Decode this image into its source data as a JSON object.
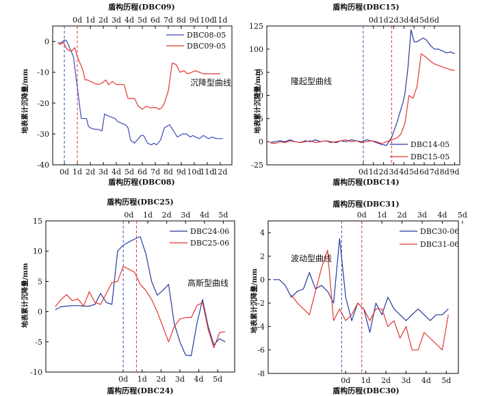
{
  "chart_data": [
    {
      "type": "line",
      "xlabel": "盾构历程(DBC08)",
      "x2label": "盾构历程(DBC09)",
      "ylabel": "地表累计沉降量/mm",
      "ylim": [
        -40,
        5
      ],
      "yticks": [
        0,
        -10,
        -20,
        -30,
        -40
      ],
      "xlim": [
        -0.9,
        12.9
      ],
      "xticks": [
        "0d",
        "1d",
        "2d",
        "3d",
        "4d",
        "5d",
        "6d",
        "7d",
        "8d",
        "9d",
        "10d",
        "11d",
        "12d"
      ],
      "x2lim": [
        -1.9,
        11.9
      ],
      "x2ticks": [
        "0d",
        "1d",
        "2d",
        "3d",
        "4d",
        "5d",
        "6d",
        "7d",
        "8d",
        "9d",
        "10d",
        "11d"
      ],
      "legend_position": "top-right",
      "annotation": "沉降型曲线",
      "vlines": [
        {
          "x": 0,
          "color": "#3a49b8"
        },
        {
          "x": 1,
          "color": "#e2342f"
        }
      ],
      "series": [
        {
          "name": "DBC08-05",
          "color": "#3a49b8",
          "x": [
            -0.5,
            -0.3,
            -0.1,
            0,
            0.15,
            0.3,
            0.5,
            0.7,
            0.85,
            1,
            1.15,
            1.3,
            1.5,
            1.7,
            1.85,
            2,
            2.3,
            2.6,
            2.9,
            3.1,
            3.3,
            3.6,
            3.9,
            4.1,
            4.4,
            4.7,
            4.9,
            5.1,
            5.4,
            5.7,
            5.9,
            6.1,
            6.4,
            6.7,
            6.9,
            7.1,
            7.4,
            7.7,
            7.9,
            8.1,
            8.4,
            8.7,
            8.9,
            9.1,
            9.4,
            9.7,
            9.9,
            10.1,
            10.4,
            10.7,
            10.9,
            11.1,
            11.4,
            11.7,
            11.9,
            12.2
          ],
          "y": [
            -0.5,
            -0.5,
            0,
            0.5,
            0.3,
            -1,
            -3,
            -5,
            -10,
            -15,
            -20,
            -25,
            -25,
            -25,
            -27.5,
            -28,
            -28.5,
            -28.5,
            -29,
            -23.5,
            -24,
            -24.5,
            -25,
            -26,
            -26.5,
            -27,
            -28,
            -32,
            -33,
            -31.5,
            -30.5,
            -30.5,
            -33,
            -33.5,
            -33,
            -33.5,
            -32,
            -28,
            -27.5,
            -27,
            -29,
            -31,
            -30.5,
            -30,
            -30,
            -31,
            -30.5,
            -31,
            -31.5,
            -30.5,
            -31,
            -31.5,
            -31,
            -31.5,
            -31.5,
            -31.5
          ]
        },
        {
          "name": "DBC09-05",
          "color": "#e2342f",
          "x": [
            -0.5,
            -0.3,
            -0.1,
            0,
            0.2,
            0.4,
            0.6,
            0.8,
            1,
            1.2,
            1.4,
            1.6,
            1.8,
            2,
            2.3,
            2.6,
            2.9,
            3.2,
            3.4,
            3.7,
            4,
            4.3,
            4.6,
            4.9,
            5.1,
            5.4,
            5.7,
            6,
            6.3,
            6.6,
            6.9,
            7.1,
            7.3,
            7.5,
            7.7,
            8,
            8.3,
            8.6,
            8.9,
            9.2,
            9.5,
            9.8,
            10.1,
            10.4,
            10.7,
            11,
            11.3,
            11.6,
            12
          ],
          "y": [
            -0.5,
            -1,
            -0.3,
            -1,
            -2.5,
            -3,
            -3,
            -2,
            -5,
            -7,
            -9,
            -12.5,
            -12.5,
            -13,
            -13.5,
            -14,
            -13.5,
            -12.5,
            -14,
            -13,
            -14,
            -14,
            -14,
            -18.5,
            -18.5,
            -18.5,
            -21,
            -22,
            -21,
            -21.5,
            -21.5,
            -21.5,
            -22,
            -21.5,
            -20,
            -16,
            -7,
            -7.5,
            -10,
            -9.5,
            -10.5,
            -10,
            -9.5,
            -10,
            -10.5,
            -10.5,
            -10.5,
            -10.5,
            -10.5
          ]
        }
      ]
    },
    {
      "type": "line",
      "xlabel": "盾构历程(DBC14)",
      "x2label": "盾构历程(DBC15)",
      "ylabel": "地表累计沉降量/mm",
      "ylim": [
        -25,
        125
      ],
      "yticks": [
        125,
        100,
        75,
        50,
        25,
        0,
        -25
      ],
      "xlim": [
        -9.5,
        9.5
      ],
      "xticks": [
        "0d",
        "1d",
        "2d",
        "3d",
        "4d",
        "5d",
        "6d",
        "7d",
        "8d",
        "9d"
      ],
      "x2lim": [
        -10.5,
        8.5
      ],
      "x2ticks": [
        "0d",
        "1d",
        "2d",
        "3d",
        "4d",
        "5d",
        "6d"
      ],
      "legend_position": "bottom-right",
      "annotation": "隆起型曲线",
      "vlines": [
        {
          "x": 0,
          "color": "#3a49b8"
        },
        {
          "x": 2.8,
          "color": "#e2342f"
        }
      ],
      "series": [
        {
          "name": "DBC14-05",
          "color": "#23389e",
          "x": [
            -9.2,
            -8.7,
            -8.2,
            -7.7,
            -7.2,
            -6.7,
            -6.2,
            -5.7,
            -5.2,
            -4.7,
            -4.2,
            -3.7,
            -3.2,
            -2.7,
            -2.2,
            -1.7,
            -1.2,
            -0.7,
            -0.2,
            0.3,
            0.8,
            1.3,
            1.8,
            2.3,
            2.8,
            3.3,
            3.7,
            3.9,
            4.1,
            4.4,
            4.7,
            5,
            5.3,
            5.6,
            5.9,
            6.2,
            6.6,
            7,
            7.4,
            7.8,
            8.2,
            8.6,
            9
          ],
          "y": [
            -1,
            0,
            1,
            0,
            2,
            0,
            -1,
            1,
            0,
            2,
            0,
            1,
            0,
            -1,
            1,
            0,
            2,
            1,
            0,
            2,
            1,
            -1,
            -3,
            -4,
            5,
            20,
            35,
            42,
            52,
            80,
            121,
            108,
            108,
            110,
            112,
            110,
            104,
            100,
            100,
            98,
            96,
            97,
            95
          ]
        },
        {
          "name": "DBC15-05",
          "color": "#e2342f",
          "x": [
            -9.2,
            -8.7,
            -8.2,
            -7.7,
            -7.2,
            -6.7,
            -6.2,
            -5.7,
            -5.2,
            -4.7,
            -4.2,
            -3.7,
            -3.2,
            -2.7,
            -2.2,
            -1.7,
            -1.2,
            -0.7,
            -0.2,
            0.3,
            0.8,
            1.3,
            1.8,
            2.3,
            2.8,
            3.3,
            3.7,
            4.1,
            4.5,
            4.9,
            5.3,
            5.7,
            6.1,
            6.5,
            7,
            7.5,
            8,
            8.5,
            9
          ],
          "y": [
            -1,
            -2,
            0,
            -1,
            1,
            0,
            -1,
            0,
            1,
            -1,
            0,
            1,
            -1,
            0,
            1,
            2,
            0,
            1,
            -1,
            0,
            1,
            0,
            -2,
            0,
            2,
            4,
            8,
            20,
            50,
            47,
            60,
            95,
            92,
            88,
            84,
            82,
            80,
            78,
            77
          ]
        }
      ]
    },
    {
      "type": "line",
      "xlabel": "盾构历程(DBC24)",
      "x2label": "盾构历程(DBC25)",
      "ylabel": "地表累计沉降量/mm",
      "ylim": [
        -10,
        15
      ],
      "yticks": [
        15,
        10,
        5,
        0,
        -5,
        -10
      ],
      "xlim": [
        -4.1,
        5.9
      ],
      "xticks": [
        "0d",
        "1d",
        "2d",
        "3d",
        "4d",
        "5d"
      ],
      "x2lim": [
        -4.4,
        5.6
      ],
      "x2ticks": [
        "0d",
        "1d",
        "2d",
        "3d",
        "4d",
        "5d"
      ],
      "legend_position": "top-right",
      "annotation": "高斯型曲线",
      "vlines": [
        {
          "x": 0,
          "color": "#3a49b8"
        },
        {
          "x": 0.7,
          "color": "#e2342f"
        }
      ],
      "series": [
        {
          "name": "DBC24-06",
          "color": "#23389e",
          "x": [
            -3.6,
            -3.3,
            -3,
            -2.7,
            -2.4,
            -2.1,
            -1.8,
            -1.5,
            -1.2,
            -0.9,
            -0.6,
            -0.3,
            0,
            0.3,
            0.6,
            0.9,
            1.2,
            1.5,
            1.8,
            2.1,
            2.4,
            2.7,
            3,
            3.3,
            3.6,
            3.9,
            4.2,
            4.5,
            4.8,
            5.1,
            5.4
          ],
          "y": [
            0.3,
            0.8,
            0.9,
            1,
            1,
            0.9,
            0.9,
            1.2,
            3,
            1.5,
            1.2,
            10,
            11,
            11.5,
            12,
            12.4,
            9.5,
            5,
            2.7,
            3.5,
            4.5,
            -2,
            -5,
            -7.2,
            -7.3,
            -2,
            2,
            -2.5,
            -5.5,
            -4.5,
            -5
          ]
        },
        {
          "name": "DBC25-06",
          "color": "#e2342f",
          "x": [
            -3.6,
            -3.3,
            -3,
            -2.7,
            -2.4,
            -2.1,
            -1.8,
            -1.5,
            -1.2,
            -0.9,
            -0.6,
            -0.3,
            0,
            0.3,
            0.6,
            0.9,
            1.2,
            1.5,
            1.8,
            2.1,
            2.4,
            2.7,
            3,
            3.3,
            3.6,
            3.9,
            4.2,
            4.5,
            4.8,
            5.1,
            5.4
          ],
          "y": [
            0.8,
            2,
            2.8,
            1.8,
            2.1,
            0.9,
            3.3,
            1.5,
            1.2,
            3,
            4.8,
            5,
            7.5,
            7,
            6.5,
            4.5,
            3.5,
            2,
            0,
            -2.5,
            -5,
            -2.5,
            -1.2,
            -1,
            -1,
            1,
            1.5,
            -3,
            -6,
            -3.5,
            -3.3
          ]
        }
      ]
    },
    {
      "type": "line",
      "xlabel": "盾构历程(DBC30)",
      "x2label": "盾构历程(DBC31)",
      "ylabel": "地表累计沉降量/mm",
      "ylim": [
        -8,
        5
      ],
      "yticks": [
        4,
        2,
        0,
        -2,
        -4,
        -6,
        -8
      ],
      "xlim": [
        -3.85,
        5.6
      ],
      "xticks": [
        "0d",
        "1d",
        "2d",
        "3d",
        "4d",
        "5d"
      ],
      "x2lim": [
        -4.65,
        4.8
      ],
      "x2ticks": [
        "0d",
        "1d",
        "2d",
        "3d",
        "4d",
        "5d"
      ],
      "legend_position": "top-right",
      "annotation": "波动型曲线",
      "vlines": [
        {
          "x": -0.2,
          "color": "#3a49b8"
        },
        {
          "x": 0.8,
          "color": "#e2342f"
        }
      ],
      "series": [
        {
          "name": "DBC30-06",
          "color": "#23389e",
          "x": [
            -3.6,
            -3.3,
            -3,
            -2.7,
            -2.4,
            -2.1,
            -1.8,
            -1.5,
            -1.2,
            -0.9,
            -0.6,
            -0.3,
            0,
            0.3,
            0.6,
            0.9,
            1.2,
            1.5,
            1.8,
            2.1,
            2.4,
            2.7,
            3,
            3.3,
            3.6,
            3.9,
            4.2,
            4.5,
            4.8,
            5.1
          ],
          "y": [
            0,
            0,
            -0.5,
            -1.5,
            -1,
            -0.8,
            0.6,
            -0.8,
            -0.5,
            -1,
            -2,
            3.5,
            -1.5,
            -3.5,
            -2,
            -2.5,
            -4.5,
            -2,
            -3,
            -1.5,
            -2.5,
            -3,
            -3.5,
            -3,
            -2.5,
            -3,
            -3.5,
            -3,
            -3,
            -2.5
          ]
        },
        {
          "name": "DBC31-06",
          "color": "#e2342f",
          "x": [
            -2.7,
            -2.4,
            -2.1,
            -1.8,
            -1.5,
            -1.2,
            -0.9,
            -0.6,
            -0.3,
            0,
            0.3,
            0.6,
            0.9,
            1.2,
            1.5,
            1.8,
            2.1,
            2.4,
            2.7,
            3,
            3.3,
            3.6,
            3.9,
            4.2,
            4.5,
            4.8,
            5.1
          ],
          "y": [
            -1.3,
            -2,
            -2.5,
            -3,
            -1,
            1,
            2.5,
            -3.5,
            -2.5,
            -3.5,
            -3,
            -2,
            -2.5,
            -3.5,
            -2.5,
            -2.5,
            -4,
            -3.5,
            -5,
            -4,
            -6,
            -6,
            -4.5,
            -5,
            -5.5,
            -6,
            -3
          ]
        }
      ]
    }
  ]
}
